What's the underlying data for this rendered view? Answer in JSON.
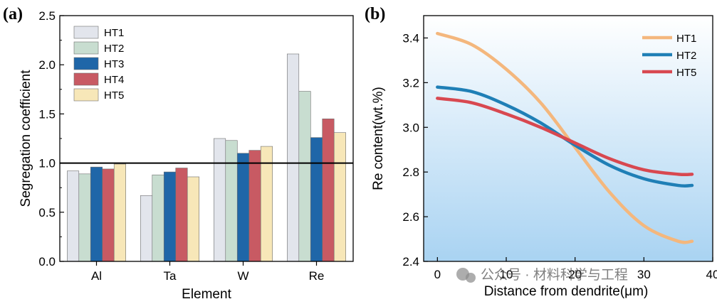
{
  "figure": {
    "watermark": "公众号 · 材料科学与工程"
  },
  "chart_data": [
    {
      "panel_label": "(a)",
      "type": "bar",
      "categories": [
        "Al",
        "Ta",
        "W",
        "Re"
      ],
      "series": [
        {
          "name": "HT1",
          "color": "#e2e5ec",
          "values": [
            0.92,
            0.67,
            1.25,
            2.11
          ]
        },
        {
          "name": "HT2",
          "color": "#c8ddd0",
          "values": [
            0.89,
            0.88,
            1.23,
            1.73
          ]
        },
        {
          "name": "HT3",
          "color": "#1f66a8",
          "values": [
            0.96,
            0.91,
            1.1,
            1.26
          ]
        },
        {
          "name": "HT4",
          "color": "#c85a63",
          "values": [
            0.94,
            0.95,
            1.13,
            1.45
          ]
        },
        {
          "name": "HT5",
          "color": "#f7e7b8",
          "values": [
            0.99,
            0.86,
            1.17,
            1.31
          ]
        }
      ],
      "xlabel": "Element",
      "ylabel": "Segregation coefficient",
      "ylim": [
        0,
        2.5
      ],
      "yticks": [
        "0.0",
        "0.5",
        "1.0",
        "1.5",
        "2.0",
        "2.5"
      ],
      "reference_line": 1.0,
      "grid": false,
      "legend_position": "top-left"
    },
    {
      "panel_label": "(b)",
      "type": "line",
      "series": [
        {
          "name": "HT1",
          "color": "#f4b77d",
          "x": [
            0,
            5,
            10,
            15,
            20,
            25,
            30,
            35,
            37
          ],
          "y": [
            3.42,
            3.37,
            3.26,
            3.11,
            2.91,
            2.71,
            2.56,
            2.49,
            2.49
          ]
        },
        {
          "name": "HT2",
          "color": "#1f7fb6",
          "x": [
            0,
            5,
            10,
            15,
            20,
            25,
            30,
            35,
            37
          ],
          "y": [
            3.18,
            3.16,
            3.1,
            3.02,
            2.92,
            2.83,
            2.77,
            2.74,
            2.74
          ]
        },
        {
          "name": "HT5",
          "color": "#d84850",
          "x": [
            0,
            5,
            10,
            15,
            20,
            25,
            30,
            35,
            37
          ],
          "y": [
            3.13,
            3.11,
            3.06,
            3.0,
            2.93,
            2.86,
            2.81,
            2.79,
            2.79
          ]
        }
      ],
      "xlabel": "Distance from dendrite(μm)",
      "ylabel": "Re content(wt.%)",
      "xlim": [
        -2,
        40
      ],
      "ylim": [
        2.4,
        3.5
      ],
      "xticks": [
        "0",
        "10",
        "20",
        "30",
        "40"
      ],
      "yticks": [
        "2.4",
        "2.6",
        "2.8",
        "3.0",
        "3.2",
        "3.4"
      ],
      "grid": false,
      "background": "gradient white to light blue",
      "legend_position": "top-right"
    }
  ]
}
